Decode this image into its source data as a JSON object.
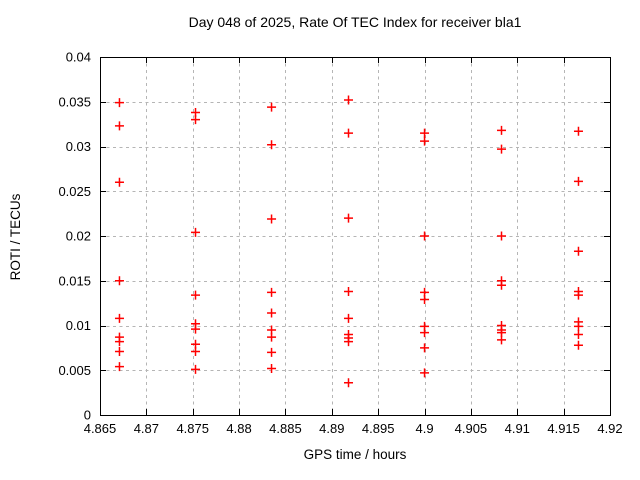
{
  "title": "Day 048 of 2025, Rate Of TEC Index for receiver bla1",
  "chart_data": {
    "type": "scatter",
    "title": "Day 048 of 2025, Rate Of TEC Index for receiver bla1",
    "xlabel": "GPS time / hours",
    "ylabel": "ROTI / TECUs",
    "xlim": [
      4.865,
      4.92
    ],
    "ylim": [
      0,
      0.04
    ],
    "x_ticks": [
      4.865,
      4.87,
      4.875,
      4.88,
      4.885,
      4.89,
      4.895,
      4.9,
      4.905,
      4.91,
      4.915,
      4.92
    ],
    "x_tick_labels": [
      "4.865",
      "4.87",
      "4.875",
      "4.88",
      "4.885",
      "4.89",
      "4.895",
      "4.9",
      "4.905",
      "4.91",
      "4.915",
      "4.92"
    ],
    "y_ticks": [
      0,
      0.005,
      0.01,
      0.015,
      0.02,
      0.025,
      0.03,
      0.035,
      0.04
    ],
    "y_tick_labels": [
      "0",
      "0.005",
      "0.01",
      "0.015",
      "0.02",
      "0.025",
      "0.03",
      "0.035",
      "0.04"
    ],
    "grid": true,
    "legend": "none",
    "marker_shape": "plus",
    "marker_color": "#ff0000",
    "grid_color": "#b5b5b5",
    "frame_color": "#000000",
    "background_color": "#ffffff",
    "series": [
      {
        "points": [
          [
            4.8671,
            0.0349
          ],
          [
            4.8671,
            0.0323
          ],
          [
            4.8671,
            0.026
          ],
          [
            4.8671,
            0.015
          ],
          [
            4.8671,
            0.0108
          ],
          [
            4.8671,
            0.0087
          ],
          [
            4.8671,
            0.0082
          ],
          [
            4.8671,
            0.0071
          ],
          [
            4.8671,
            0.0054
          ],
          [
            4.8753,
            0.0338
          ],
          [
            4.8753,
            0.033
          ],
          [
            4.8753,
            0.0204
          ],
          [
            4.8753,
            0.0134
          ],
          [
            4.8753,
            0.0102
          ],
          [
            4.8753,
            0.0096
          ],
          [
            4.8753,
            0.0079
          ],
          [
            4.8753,
            0.0071
          ],
          [
            4.8753,
            0.0051
          ],
          [
            4.8835,
            0.0344
          ],
          [
            4.8835,
            0.0302
          ],
          [
            4.8835,
            0.0219
          ],
          [
            4.8835,
            0.0137
          ],
          [
            4.8835,
            0.0114
          ],
          [
            4.8835,
            0.0095
          ],
          [
            4.8835,
            0.0087
          ],
          [
            4.8835,
            0.007
          ],
          [
            4.8835,
            0.0052
          ],
          [
            4.8918,
            0.0352
          ],
          [
            4.8918,
            0.0315
          ],
          [
            4.8918,
            0.022
          ],
          [
            4.8918,
            0.0138
          ],
          [
            4.8918,
            0.0108
          ],
          [
            4.8918,
            0.009
          ],
          [
            4.8918,
            0.0086
          ],
          [
            4.8918,
            0.0082
          ],
          [
            4.8918,
            0.0036
          ],
          [
            4.9,
            0.0315
          ],
          [
            4.9,
            0.0306
          ],
          [
            4.9,
            0.02
          ],
          [
            4.9,
            0.0137
          ],
          [
            4.9,
            0.0129
          ],
          [
            4.9,
            0.0099
          ],
          [
            4.9,
            0.0092
          ],
          [
            4.9,
            0.0075
          ],
          [
            4.9,
            0.0047
          ],
          [
            4.9083,
            0.0318
          ],
          [
            4.9083,
            0.0297
          ],
          [
            4.9083,
            0.02
          ],
          [
            4.9083,
            0.015
          ],
          [
            4.9083,
            0.0145
          ],
          [
            4.9083,
            0.01
          ],
          [
            4.9083,
            0.0095
          ],
          [
            4.9083,
            0.0092
          ],
          [
            4.9083,
            0.0084
          ],
          [
            4.9166,
            0.0317
          ],
          [
            4.9166,
            0.0261
          ],
          [
            4.9166,
            0.0183
          ],
          [
            4.9166,
            0.0138
          ],
          [
            4.9166,
            0.0134
          ],
          [
            4.9166,
            0.0104
          ],
          [
            4.9166,
            0.0099
          ],
          [
            4.9166,
            0.009
          ],
          [
            4.9166,
            0.0078
          ]
        ]
      }
    ]
  }
}
